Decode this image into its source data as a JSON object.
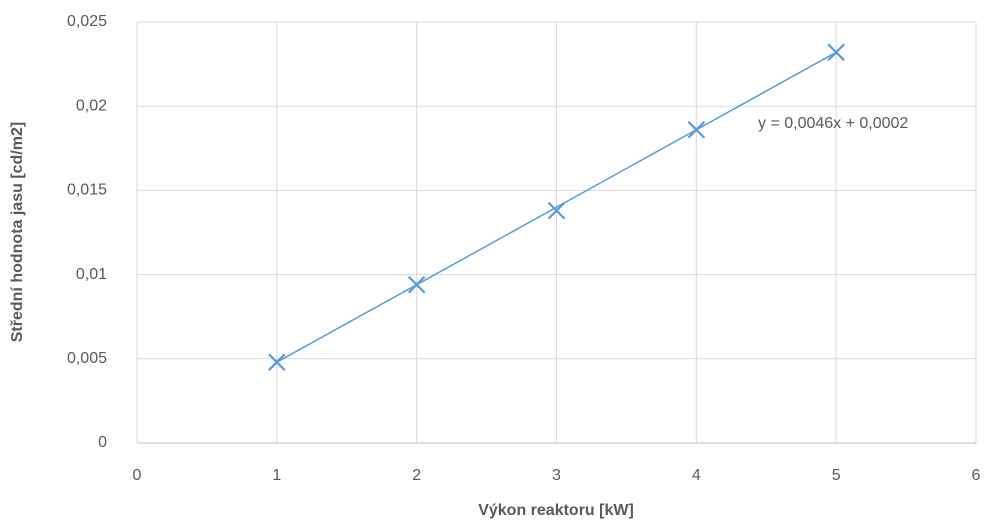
{
  "chart_data": {
    "type": "scatter",
    "x_label": "Výkon reaktoru [kW]",
    "y_label": "Střední hodnota jasu [cd/m2]",
    "series": [
      {
        "name": "Střední hodnota jasu",
        "color": "#5b9bd5",
        "x": [
          1,
          2,
          3,
          4,
          5
        ],
        "values": [
          0.0048,
          0.0094,
          0.0138,
          0.0186,
          0.0232
        ]
      }
    ],
    "trendline": {
      "label": "y = 0,0046x + 0,0002",
      "slope": 0.0046,
      "intercept": 0.0002
    },
    "xlim": [
      0,
      6
    ],
    "xticks": [
      0,
      1,
      2,
      3,
      4,
      5,
      6
    ],
    "ylim": [
      0,
      0.025
    ],
    "yticks": [
      0,
      {
        "value": 0.005,
        "label": "0,005"
      },
      {
        "value": 0.01,
        "label": "0,01"
      },
      {
        "value": 0.015,
        "label": "0,015"
      },
      {
        "value": 0.02,
        "label": "0,02"
      },
      {
        "value": 0.025,
        "label": "0,025"
      }
    ],
    "grid": true
  }
}
